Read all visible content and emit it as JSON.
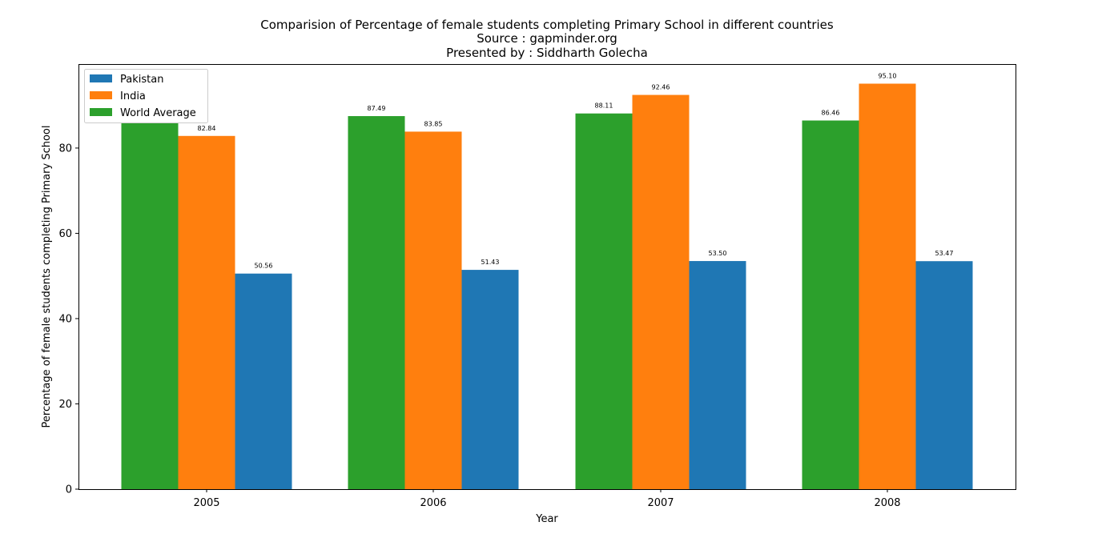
{
  "chart_data": {
    "type": "bar",
    "title": "Comparision of Percentage of female students completing Primary School in different countries",
    "subtitle_lines": [
      "Source : gapminder.org",
      "Presented by : Siddharth Golecha"
    ],
    "xlabel": "Year",
    "ylabel": "Percentage of female students completing Primary School",
    "categories": [
      "2005",
      "2006",
      "2007",
      "2008"
    ],
    "ylim": [
      0,
      100
    ],
    "yticks": [
      0,
      20,
      40,
      60,
      80
    ],
    "grid": false,
    "legend_position": "top-left",
    "series": [
      {
        "name": "World Average",
        "color": "#2ca02c",
        "values": [
          86.0,
          87.49,
          88.11,
          86.46
        ],
        "labels": [
          "",
          "87.49",
          "88.11",
          "86.46"
        ]
      },
      {
        "name": "India",
        "color": "#ff7f0e",
        "values": [
          82.84,
          83.85,
          92.46,
          95.1
        ],
        "labels": [
          "82.84",
          "83.85",
          "92.46",
          "95.10"
        ]
      },
      {
        "name": "Pakistan",
        "color": "#1f77b4",
        "values": [
          50.56,
          51.43,
          53.5,
          53.47
        ],
        "labels": [
          "50.56",
          "51.43",
          "53.50",
          "53.47"
        ]
      }
    ],
    "legend_order": [
      "Pakistan",
      "India",
      "World Average"
    ]
  }
}
